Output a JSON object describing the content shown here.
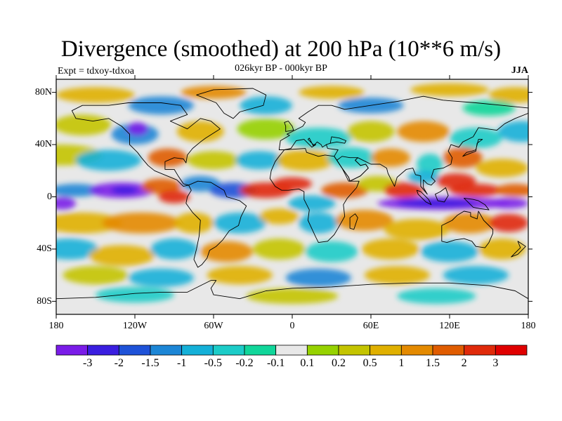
{
  "title": "Divergence (smoothed) at 200 hPa (10**6 m/s)",
  "subtitle": "026kyr BP - 000kyr BP",
  "experiment": "Expt = tdxoy-tdxoa",
  "season": "JJA",
  "map": {
    "projection": "cylindrical-equidistant",
    "lon_range": [
      -180,
      180
    ],
    "lat_range": [
      -90,
      90
    ],
    "background_color": "#e8e8e8",
    "field": "divergence anomaly (smoothed) at 200 hPa",
    "y_ticks": [
      "80N",
      "40N",
      "0",
      "40S",
      "80S"
    ],
    "x_ticks": [
      "180",
      "120W",
      "60W",
      "0",
      "60E",
      "120E",
      "180"
    ],
    "notable_features": [
      "strong convergence (purple) over tropical Indian Ocean / Maritime Continent near equator 90E-180E",
      "divergence (red) over West Pacific warm pool near 120E-150E, 10N",
      "convergence (purple) over eastern tropical Pacific near 130W, 5N",
      "divergence (red/orange) over northern tropical Atlantic and West Africa"
    ]
  },
  "colorbar": {
    "labels": [
      "-3",
      "-2",
      "-1.5",
      "-1",
      "-0.5",
      "-0.2",
      "-0.1",
      "0.1",
      "0.2",
      "0.5",
      "1",
      "1.5",
      "2",
      "3"
    ],
    "colors": [
      "#7a1ce8",
      "#3a1ee0",
      "#1e52d8",
      "#1c86d6",
      "#14b0d8",
      "#1cccc8",
      "#10d69a",
      "#e8e8e8",
      "#96d200",
      "#c4c400",
      "#e0b000",
      "#e48a00",
      "#e05c00",
      "#e02a0a",
      "#e00000"
    ]
  }
}
